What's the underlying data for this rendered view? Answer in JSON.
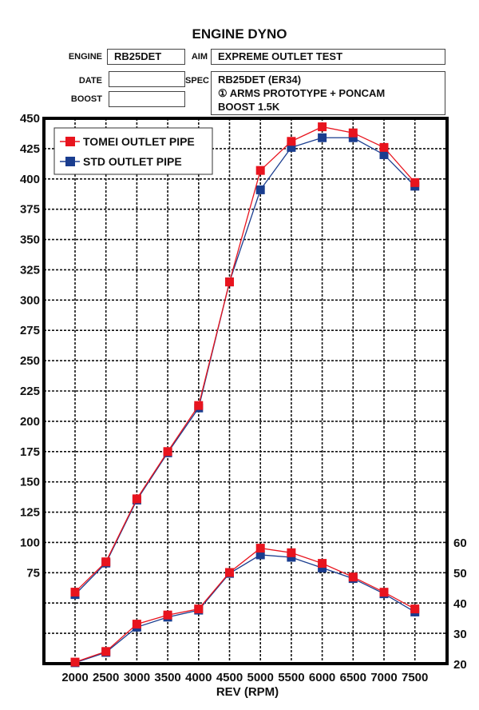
{
  "header": {
    "title": "ENGINE DYNO",
    "engine_label": "ENGINE",
    "engine_value": "RB25DET",
    "aim_label": "AIM",
    "aim_value": "EXPREME OUTLET TEST",
    "date_label": "DATE",
    "date_value": "",
    "spec_label": "SPEC",
    "spec_lines": [
      "RB25DET (ER34)",
      "① ARMS PROTOTYPE + PONCAM",
      "BOOST 1.5K"
    ],
    "boost_label": "BOOST",
    "boost_value": ""
  },
  "chart_data": {
    "type": "line",
    "title": "ENGINE DYNO",
    "xlabel": "REV (RPM)",
    "x": [
      2000,
      2500,
      3000,
      3500,
      4000,
      4500,
      5000,
      5500,
      6000,
      6500,
      7000,
      7500
    ],
    "x_tick_labels": [
      "2000",
      "2500",
      "3000",
      "3500",
      "4000",
      "4500",
      "5000",
      "5500",
      "6000",
      "6500",
      "7000",
      "7500"
    ],
    "y_left_ticks": [
      "450",
      "425",
      "400",
      "375",
      "350",
      "325",
      "300",
      "275",
      "250",
      "225",
      "200",
      "175",
      "150",
      "125",
      "100",
      "75"
    ],
    "y_right_ticks": [
      "60",
      "50",
      "40",
      "30",
      "20"
    ],
    "y_left_range": [
      0,
      450
    ],
    "y_right_range": [
      20,
      60
    ],
    "grid": true,
    "legend_placement": "top-left",
    "series": [
      {
        "name": "TOMEI OUTLET PIPE",
        "color": "#e8141e",
        "axis": "left",
        "values": [
          59,
          84,
          136,
          175,
          213,
          315,
          407,
          431,
          443,
          438,
          426,
          397
        ]
      },
      {
        "name": "STD OUTLET PIPE",
        "color": "#1a3d8f",
        "axis": "left",
        "values": [
          57,
          83,
          135,
          174,
          211,
          315,
          391,
          426,
          434,
          434,
          420,
          394
        ]
      },
      {
        "name": "TOMEI OUTLET PIPE",
        "color": "#e8141e",
        "axis": "right",
        "values": [
          20.5,
          24,
          33,
          36,
          38,
          50,
          58,
          56.5,
          53,
          48.5,
          43.5,
          38
        ]
      },
      {
        "name": "STD OUTLET PIPE",
        "color": "#1a3d8f",
        "axis": "right",
        "values": [
          20.3,
          23.7,
          32,
          35.3,
          37.6,
          49.7,
          55.8,
          55,
          51.5,
          48,
          43,
          37
        ]
      }
    ]
  }
}
